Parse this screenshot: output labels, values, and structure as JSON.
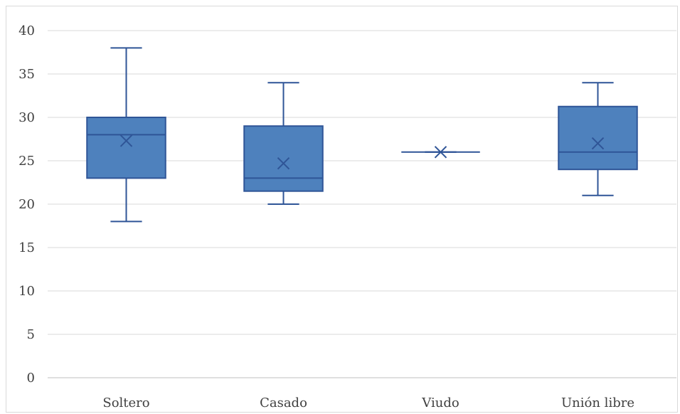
{
  "chart_data": {
    "type": "box",
    "title": "",
    "xlabel": "",
    "ylabel": "",
    "ylim": [
      0,
      40
    ],
    "yticks": [
      0,
      5,
      10,
      15,
      20,
      25,
      30,
      35,
      40
    ],
    "grid": true,
    "legend": "none",
    "colors": {
      "box_fill": "#4e81bd",
      "box_stroke": "#2f5597",
      "grid": "#d9d9d9",
      "axis": "#bfbfbf",
      "text": "#404040"
    },
    "categories": [
      "Soltero",
      "Casado",
      "Viudo",
      "Unión libre"
    ],
    "boxes": [
      {
        "category": "Soltero",
        "min": 18,
        "q1": 23,
        "median": 28,
        "q3": 30,
        "max": 38,
        "mean": 27.3
      },
      {
        "category": "Casado",
        "min": 20,
        "q1": 21.5,
        "median": 23,
        "q3": 29,
        "max": 34,
        "mean": 24.7
      },
      {
        "category": "Viudo",
        "min": 26,
        "q1": 26,
        "median": 26,
        "q3": 26,
        "max": 26,
        "mean": 26
      },
      {
        "category": "Unión libre",
        "min": 21,
        "q1": 24,
        "median": 26,
        "q3": 31.25,
        "max": 34,
        "mean": 27
      }
    ]
  }
}
